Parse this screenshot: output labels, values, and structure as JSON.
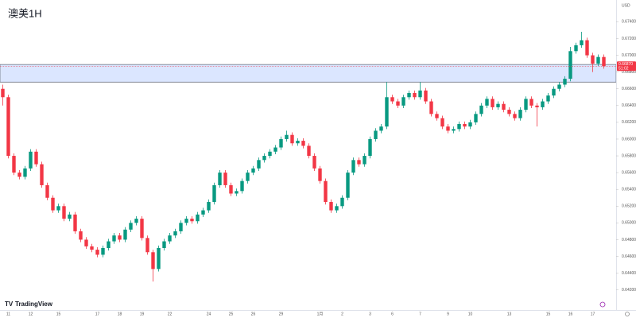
{
  "chart_data": {
    "type": "candlestick",
    "title": "澳美1H",
    "currency": "USD",
    "watermark": "TradingView",
    "up_color": "#089981",
    "down_color": "#f23645",
    "zone": {
      "low": 0.6668,
      "high": 0.6689,
      "color": "#dbe6ff"
    },
    "last_price": {
      "value": 0.6687,
      "label": "0.66870",
      "countdown": "51:02"
    },
    "ylim": [
      0.6396,
      0.6766
    ],
    "yticks": [
      {
        "value": 0.642,
        "label": "0.64200"
      },
      {
        "value": 0.644,
        "label": "0.64400"
      },
      {
        "value": 0.646,
        "label": "0.64600"
      },
      {
        "value": 0.648,
        "label": "0.64800"
      },
      {
        "value": 0.65,
        "label": "0.65000"
      },
      {
        "value": 0.652,
        "label": "0.65200"
      },
      {
        "value": 0.654,
        "label": "0.65400"
      },
      {
        "value": 0.656,
        "label": "0.65600"
      },
      {
        "value": 0.658,
        "label": "0.65800"
      },
      {
        "value": 0.66,
        "label": "0.66000"
      },
      {
        "value": 0.662,
        "label": "0.66200"
      },
      {
        "value": 0.664,
        "label": "0.66400"
      },
      {
        "value": 0.666,
        "label": "0.66600"
      },
      {
        "value": 0.668,
        "label": "0.66800"
      },
      {
        "value": 0.67,
        "label": "0.67000"
      },
      {
        "value": 0.672,
        "label": "0.67200"
      },
      {
        "value": 0.674,
        "label": "0.67400"
      }
    ],
    "categories": [
      null,
      "11",
      null,
      null,
      null,
      "12",
      null,
      null,
      null,
      null,
      "15",
      null,
      null,
      null,
      null,
      null,
      null,
      "17",
      null,
      null,
      null,
      "18",
      null,
      null,
      null,
      "19",
      null,
      null,
      null,
      null,
      "22",
      null,
      null,
      null,
      null,
      null,
      null,
      "24",
      null,
      null,
      null,
      "25",
      null,
      null,
      null,
      "26",
      null,
      null,
      null,
      null,
      "29",
      null,
      null,
      null,
      null,
      null,
      null,
      "1月",
      null,
      null,
      null,
      "2",
      null,
      null,
      null,
      null,
      "3",
      null,
      null,
      null,
      "6",
      null,
      null,
      null,
      null,
      "7",
      null,
      null,
      null,
      null,
      "9",
      null,
      null,
      null,
      "10",
      null,
      null,
      null,
      null,
      null,
      null,
      "13",
      null,
      null,
      null,
      null,
      null,
      null,
      "15",
      null,
      null,
      null,
      "16",
      null,
      null,
      null,
      "17",
      null,
      null
    ],
    "ohlc": [
      [
        0.666,
        0.6665,
        0.664,
        0.665
      ],
      [
        0.665,
        0.6653,
        0.6577,
        0.658
      ],
      [
        0.658,
        0.6583,
        0.6557,
        0.656
      ],
      [
        0.656,
        0.6563,
        0.6552,
        0.6555
      ],
      [
        0.6555,
        0.6568,
        0.6552,
        0.6565
      ],
      [
        0.6565,
        0.6588,
        0.6562,
        0.6585
      ],
      [
        0.6585,
        0.6588,
        0.6567,
        0.657
      ],
      [
        0.657,
        0.6573,
        0.6542,
        0.6545
      ],
      [
        0.6545,
        0.6548,
        0.6527,
        0.653
      ],
      [
        0.653,
        0.6533,
        0.6512,
        0.6515
      ],
      [
        0.6515,
        0.6523,
        0.6512,
        0.652
      ],
      [
        0.652,
        0.6523,
        0.6502,
        0.6505
      ],
      [
        0.6505,
        0.6513,
        0.6502,
        0.651
      ],
      [
        0.651,
        0.6513,
        0.6487,
        0.649
      ],
      [
        0.649,
        0.6493,
        0.6477,
        0.648
      ],
      [
        0.648,
        0.6483,
        0.6469,
        0.6472
      ],
      [
        0.6472,
        0.6475,
        0.6465,
        0.6468
      ],
      [
        0.6468,
        0.6471,
        0.6459,
        0.6462
      ],
      [
        0.6462,
        0.6473,
        0.6459,
        0.647
      ],
      [
        0.647,
        0.6481,
        0.6467,
        0.6478
      ],
      [
        0.6478,
        0.6488,
        0.6475,
        0.6485
      ],
      [
        0.6485,
        0.6488,
        0.6477,
        0.648
      ],
      [
        0.648,
        0.6495,
        0.6477,
        0.6492
      ],
      [
        0.6492,
        0.6503,
        0.6489,
        0.65
      ],
      [
        0.65,
        0.6508,
        0.6497,
        0.6505
      ],
      [
        0.6505,
        0.6508,
        0.6479,
        0.6482
      ],
      [
        0.6482,
        0.6485,
        0.6462,
        0.6465
      ],
      [
        0.6465,
        0.6468,
        0.643,
        0.6445
      ],
      [
        0.6445,
        0.6473,
        0.6442,
        0.647
      ],
      [
        0.647,
        0.6481,
        0.6467,
        0.6478
      ],
      [
        0.6478,
        0.6488,
        0.6475,
        0.6485
      ],
      [
        0.6485,
        0.6493,
        0.6482,
        0.649
      ],
      [
        0.649,
        0.6503,
        0.6487,
        0.65
      ],
      [
        0.65,
        0.6508,
        0.6497,
        0.6505
      ],
      [
        0.6505,
        0.6508,
        0.6499,
        0.6502
      ],
      [
        0.6502,
        0.6513,
        0.6499,
        0.651
      ],
      [
        0.651,
        0.6518,
        0.6507,
        0.6515
      ],
      [
        0.6515,
        0.6528,
        0.6512,
        0.6525
      ],
      [
        0.6525,
        0.6548,
        0.6522,
        0.6545
      ],
      [
        0.6545,
        0.6563,
        0.6542,
        0.656
      ],
      [
        0.656,
        0.6563,
        0.6542,
        0.6545
      ],
      [
        0.6545,
        0.6548,
        0.6532,
        0.6535
      ],
      [
        0.6535,
        0.6541,
        0.6532,
        0.6538
      ],
      [
        0.6538,
        0.6553,
        0.6535,
        0.655
      ],
      [
        0.655,
        0.6563,
        0.6547,
        0.656
      ],
      [
        0.656,
        0.6568,
        0.6557,
        0.6565
      ],
      [
        0.6565,
        0.6578,
        0.6562,
        0.6575
      ],
      [
        0.6575,
        0.6583,
        0.6572,
        0.658
      ],
      [
        0.658,
        0.6588,
        0.6577,
        0.6585
      ],
      [
        0.6585,
        0.6593,
        0.6582,
        0.659
      ],
      [
        0.659,
        0.6603,
        0.6587,
        0.66
      ],
      [
        0.66,
        0.661,
        0.6597,
        0.6605
      ],
      [
        0.6605,
        0.6608,
        0.6592,
        0.6595
      ],
      [
        0.6595,
        0.6601,
        0.6592,
        0.6598
      ],
      [
        0.6598,
        0.6601,
        0.6589,
        0.6592
      ],
      [
        0.6592,
        0.6595,
        0.6577,
        0.658
      ],
      [
        0.658,
        0.6583,
        0.6562,
        0.6565
      ],
      [
        0.6565,
        0.6568,
        0.6547,
        0.655
      ],
      [
        0.655,
        0.6553,
        0.6522,
        0.6525
      ],
      [
        0.6525,
        0.6528,
        0.6512,
        0.6515
      ],
      [
        0.6515,
        0.6523,
        0.6512,
        0.652
      ],
      [
        0.652,
        0.6533,
        0.6517,
        0.653
      ],
      [
        0.653,
        0.6563,
        0.6527,
        0.656
      ],
      [
        0.656,
        0.6578,
        0.6557,
        0.6575
      ],
      [
        0.6575,
        0.6578,
        0.6567,
        0.657
      ],
      [
        0.657,
        0.6583,
        0.6567,
        0.658
      ],
      [
        0.658,
        0.6603,
        0.6577,
        0.66
      ],
      [
        0.66,
        0.6613,
        0.6597,
        0.661
      ],
      [
        0.661,
        0.6618,
        0.6607,
        0.6615
      ],
      [
        0.6615,
        0.6668,
        0.6612,
        0.665
      ],
      [
        0.665,
        0.6653,
        0.6642,
        0.6645
      ],
      [
        0.6645,
        0.6648,
        0.6637,
        0.664
      ],
      [
        0.664,
        0.6653,
        0.6637,
        0.665
      ],
      [
        0.665,
        0.6658,
        0.6647,
        0.6655
      ],
      [
        0.6655,
        0.6658,
        0.6647,
        0.665
      ],
      [
        0.665,
        0.6668,
        0.6647,
        0.6658
      ],
      [
        0.6658,
        0.6661,
        0.6642,
        0.6645
      ],
      [
        0.6645,
        0.6648,
        0.6627,
        0.663
      ],
      [
        0.663,
        0.6633,
        0.6622,
        0.6625
      ],
      [
        0.6625,
        0.6628,
        0.6612,
        0.6615
      ],
      [
        0.6615,
        0.6618,
        0.6607,
        0.661
      ],
      [
        0.661,
        0.6615,
        0.6607,
        0.6612
      ],
      [
        0.6612,
        0.6621,
        0.6609,
        0.6618
      ],
      [
        0.6618,
        0.6621,
        0.6612,
        0.6615
      ],
      [
        0.6615,
        0.6623,
        0.6612,
        0.662
      ],
      [
        0.662,
        0.6633,
        0.6617,
        0.663
      ],
      [
        0.663,
        0.6643,
        0.6627,
        0.664
      ],
      [
        0.664,
        0.6651,
        0.6637,
        0.6648
      ],
      [
        0.6648,
        0.6651,
        0.6635,
        0.6638
      ],
      [
        0.6638,
        0.6645,
        0.6635,
        0.6642
      ],
      [
        0.6642,
        0.6645,
        0.6632,
        0.6635
      ],
      [
        0.6635,
        0.6638,
        0.6627,
        0.663
      ],
      [
        0.663,
        0.6633,
        0.6622,
        0.6625
      ],
      [
        0.6625,
        0.6638,
        0.6622,
        0.6635
      ],
      [
        0.6635,
        0.6651,
        0.6632,
        0.6648
      ],
      [
        0.6648,
        0.6651,
        0.6637,
        0.664
      ],
      [
        0.664,
        0.6643,
        0.6615,
        0.6638
      ],
      [
        0.6638,
        0.6648,
        0.6635,
        0.6645
      ],
      [
        0.6645,
        0.6655,
        0.6642,
        0.6652
      ],
      [
        0.6652,
        0.6663,
        0.6649,
        0.666
      ],
      [
        0.666,
        0.6668,
        0.6657,
        0.6665
      ],
      [
        0.6665,
        0.6675,
        0.6662,
        0.6672
      ],
      [
        0.6672,
        0.671,
        0.6669,
        0.6705
      ],
      [
        0.6705,
        0.6715,
        0.6702,
        0.6712
      ],
      [
        0.6712,
        0.6728,
        0.6709,
        0.6718
      ],
      [
        0.6718,
        0.6721,
        0.6697,
        0.67
      ],
      [
        0.67,
        0.6703,
        0.668,
        0.669
      ],
      [
        0.669,
        0.6701,
        0.6687,
        0.6698
      ],
      [
        0.6698,
        0.6701,
        0.6684,
        0.6687
      ]
    ]
  }
}
